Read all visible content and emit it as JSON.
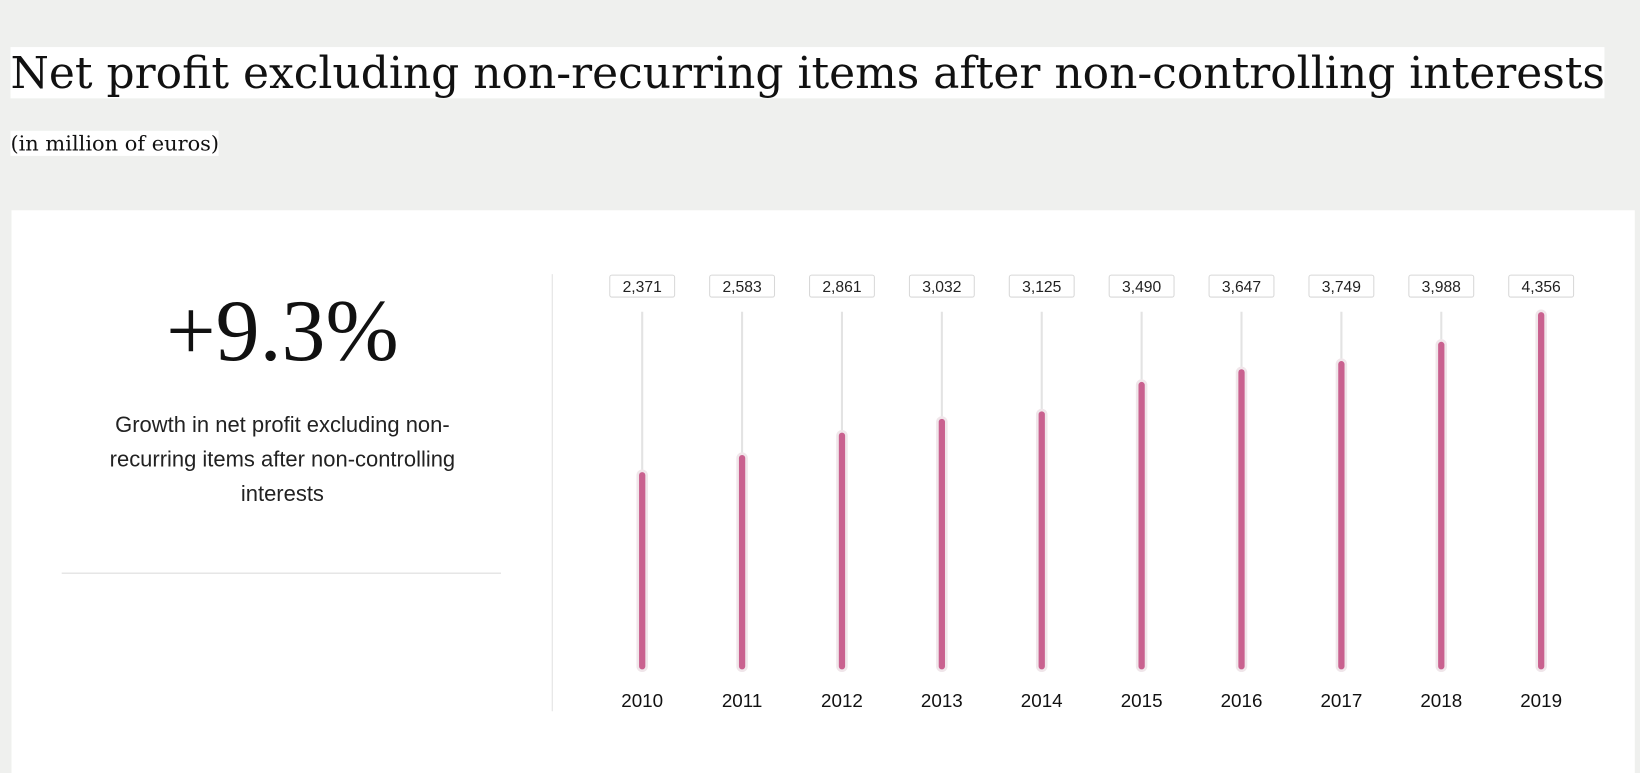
{
  "chart_data": {
    "type": "bar",
    "title": "Net profit excluding non-recurring items after non-controlling interests",
    "subtitle": "(in million of euros)",
    "categories": [
      "2010",
      "2011",
      "2012",
      "2013",
      "2014",
      "2015",
      "2016",
      "2017",
      "2018",
      "2019"
    ],
    "values": [
      2371,
      2583,
      2861,
      3032,
      3125,
      3490,
      3647,
      3749,
      3988,
      4356
    ],
    "value_labels": [
      "2,371",
      "2,583",
      "2,861",
      "3,032",
      "3,125",
      "3,490",
      "3,647",
      "3,749",
      "3,988",
      "4,356"
    ],
    "color": "#c9618f",
    "ylim": [
      0,
      4400
    ]
  },
  "kpi": {
    "value": "+9.3%",
    "label": "Growth in net profit excluding non-recurring items after non-controlling interests"
  }
}
